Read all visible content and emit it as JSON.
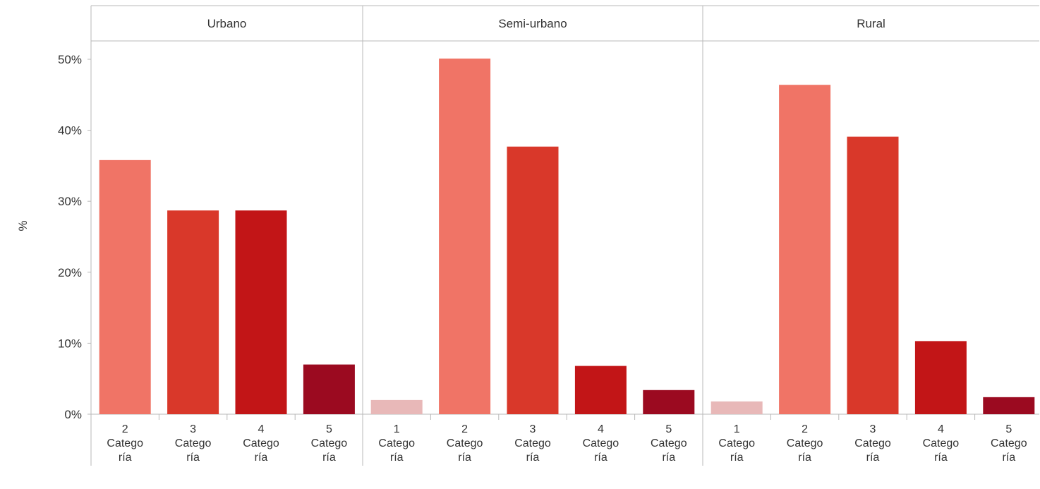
{
  "chart_data": {
    "type": "bar",
    "ylabel": "%",
    "ylim": [
      0,
      52
    ],
    "yticks": [
      {
        "value": 0,
        "label": "0%"
      },
      {
        "value": 10,
        "label": "10%"
      },
      {
        "value": 20,
        "label": "20%"
      },
      {
        "value": 30,
        "label": "30%"
      },
      {
        "value": 40,
        "label": "40%"
      },
      {
        "value": 50,
        "label": "50%"
      }
    ],
    "grid": false,
    "colors": {
      "1 Categoría": "#e8b8b8",
      "2 Categoría": "#f07466",
      "3 Categoría": "#d9382a",
      "4 Categoría": "#c21517",
      "5 Categoría": "#9b0a20"
    },
    "panels": [
      {
        "title": "Urbano",
        "bars": [
          {
            "category": "2 Categoría",
            "num": "2",
            "line1": "Catego",
            "line2": "ría",
            "value": 35.8
          },
          {
            "category": "3 Categoría",
            "num": "3",
            "line1": "Catego",
            "line2": "ría",
            "value": 28.7
          },
          {
            "category": "4 Categoría",
            "num": "4",
            "line1": "Catego",
            "line2": "ría",
            "value": 28.7
          },
          {
            "category": "5 Categoría",
            "num": "5",
            "line1": "Catego",
            "line2": "ría",
            "value": 7.0
          }
        ]
      },
      {
        "title": "Semi-urbano",
        "bars": [
          {
            "category": "1 Categoría",
            "num": "1",
            "line1": "Catego",
            "line2": "ría",
            "value": 2.0
          },
          {
            "category": "2 Categoría",
            "num": "2",
            "line1": "Catego",
            "line2": "ría",
            "value": 50.1
          },
          {
            "category": "3 Categoría",
            "num": "3",
            "line1": "Catego",
            "line2": "ría",
            "value": 37.7
          },
          {
            "category": "4 Categoría",
            "num": "4",
            "line1": "Catego",
            "line2": "ría",
            "value": 6.8
          },
          {
            "category": "5 Categoría",
            "num": "5",
            "line1": "Catego",
            "line2": "ría",
            "value": 3.4
          }
        ]
      },
      {
        "title": "Rural",
        "bars": [
          {
            "category": "1 Categoría",
            "num": "1",
            "line1": "Catego",
            "line2": "ría",
            "value": 1.8
          },
          {
            "category": "2 Categoría",
            "num": "2",
            "line1": "Catego",
            "line2": "ría",
            "value": 46.4
          },
          {
            "category": "3 Categoría",
            "num": "3",
            "line1": "Catego",
            "line2": "ría",
            "value": 39.1
          },
          {
            "category": "4 Categoría",
            "num": "4",
            "line1": "Catego",
            "line2": "ría",
            "value": 10.3
          },
          {
            "category": "5 Categoría",
            "num": "5",
            "line1": "Catego",
            "line2": "ría",
            "value": 2.4
          }
        ]
      }
    ]
  }
}
